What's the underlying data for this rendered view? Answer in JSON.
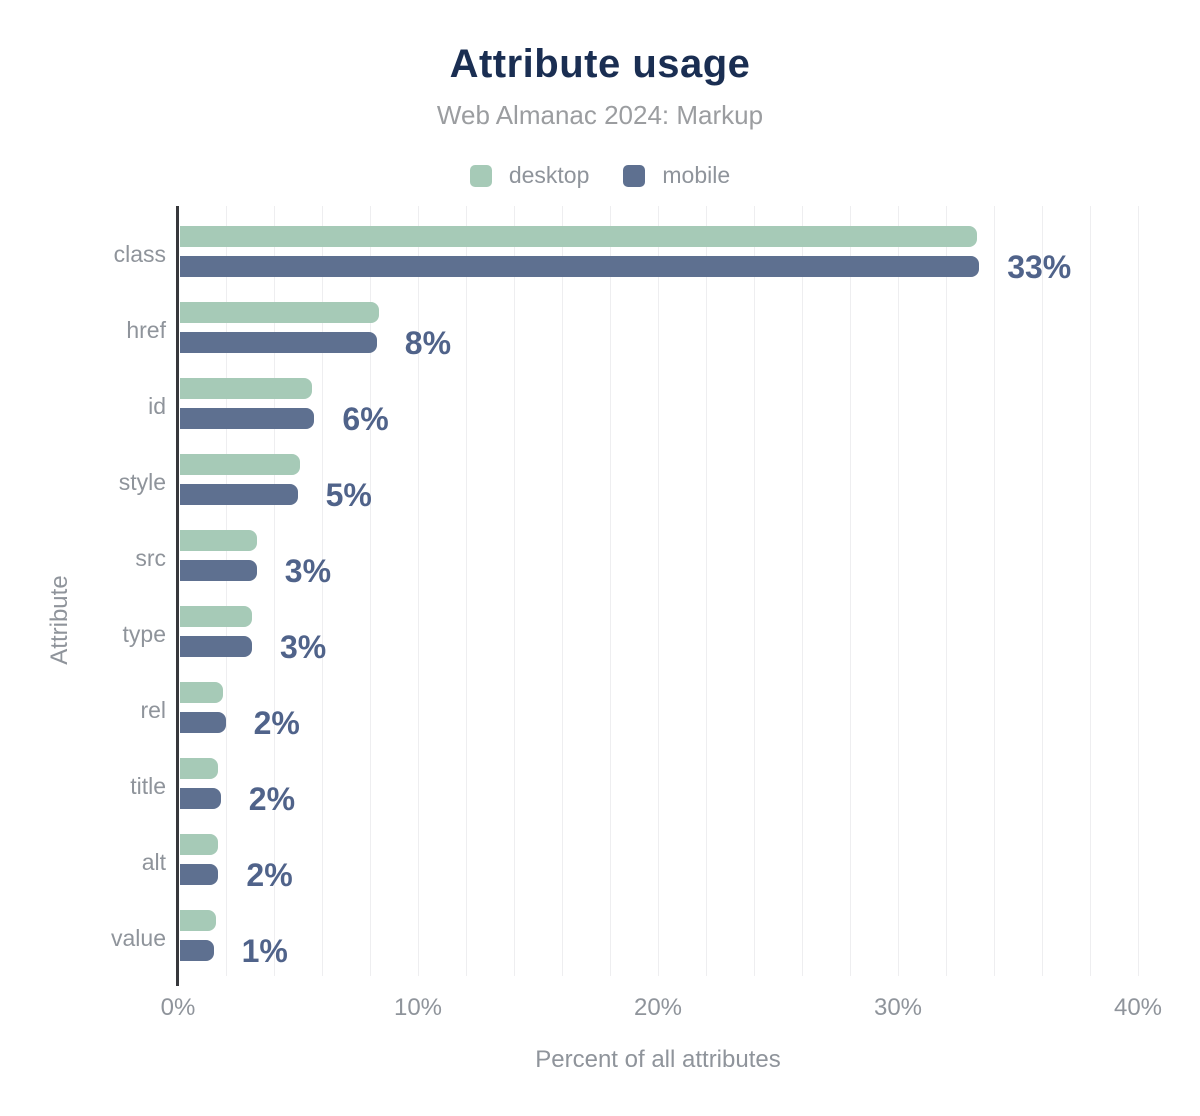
{
  "chart": {
    "title": "Attribute usage",
    "subtitle": "Web Almanac 2024: Markup",
    "xlabel": "Percent of all attributes",
    "ylabel": "Attribute"
  },
  "chart_data": {
    "type": "bar",
    "orientation": "horizontal",
    "title": "Attribute usage",
    "subtitle": "Web Almanac 2024: Markup",
    "xlabel": "Percent of all attributes",
    "ylabel": "Attribute",
    "xlim": [
      0,
      40
    ],
    "x_ticks": [
      "0%",
      "10%",
      "20%",
      "30%",
      "40%"
    ],
    "x_tick_values": [
      0,
      10,
      20,
      30,
      40
    ],
    "gridline_step_percent": 2,
    "grid": "vertical-only",
    "legend_position": "top",
    "categories": [
      "class",
      "href",
      "id",
      "style",
      "src",
      "type",
      "rel",
      "title",
      "alt",
      "value"
    ],
    "series": [
      {
        "name": "desktop",
        "color": "#a6cab7",
        "values": [
          33.2,
          8.3,
          5.5,
          5.0,
          3.2,
          3.0,
          1.8,
          1.6,
          1.6,
          1.5
        ]
      },
      {
        "name": "mobile",
        "color": "#5e7090",
        "values": [
          33.3,
          8.2,
          5.6,
          4.9,
          3.2,
          3.0,
          1.9,
          1.7,
          1.6,
          1.4
        ]
      }
    ],
    "data_labels": [
      "33%",
      "8%",
      "6%",
      "5%",
      "3%",
      "3%",
      "2%",
      "2%",
      "2%",
      "1%"
    ]
  },
  "colors": {
    "background": "#ffffff",
    "title": "#1a2e52",
    "subtitle": "#9b9da0",
    "axis_text": "#8f949b",
    "value_label": "#50638a",
    "axis_line": "#37383c",
    "gridline": "#eeeef0",
    "desktop": "#a6cab7",
    "mobile": "#5e7090"
  }
}
